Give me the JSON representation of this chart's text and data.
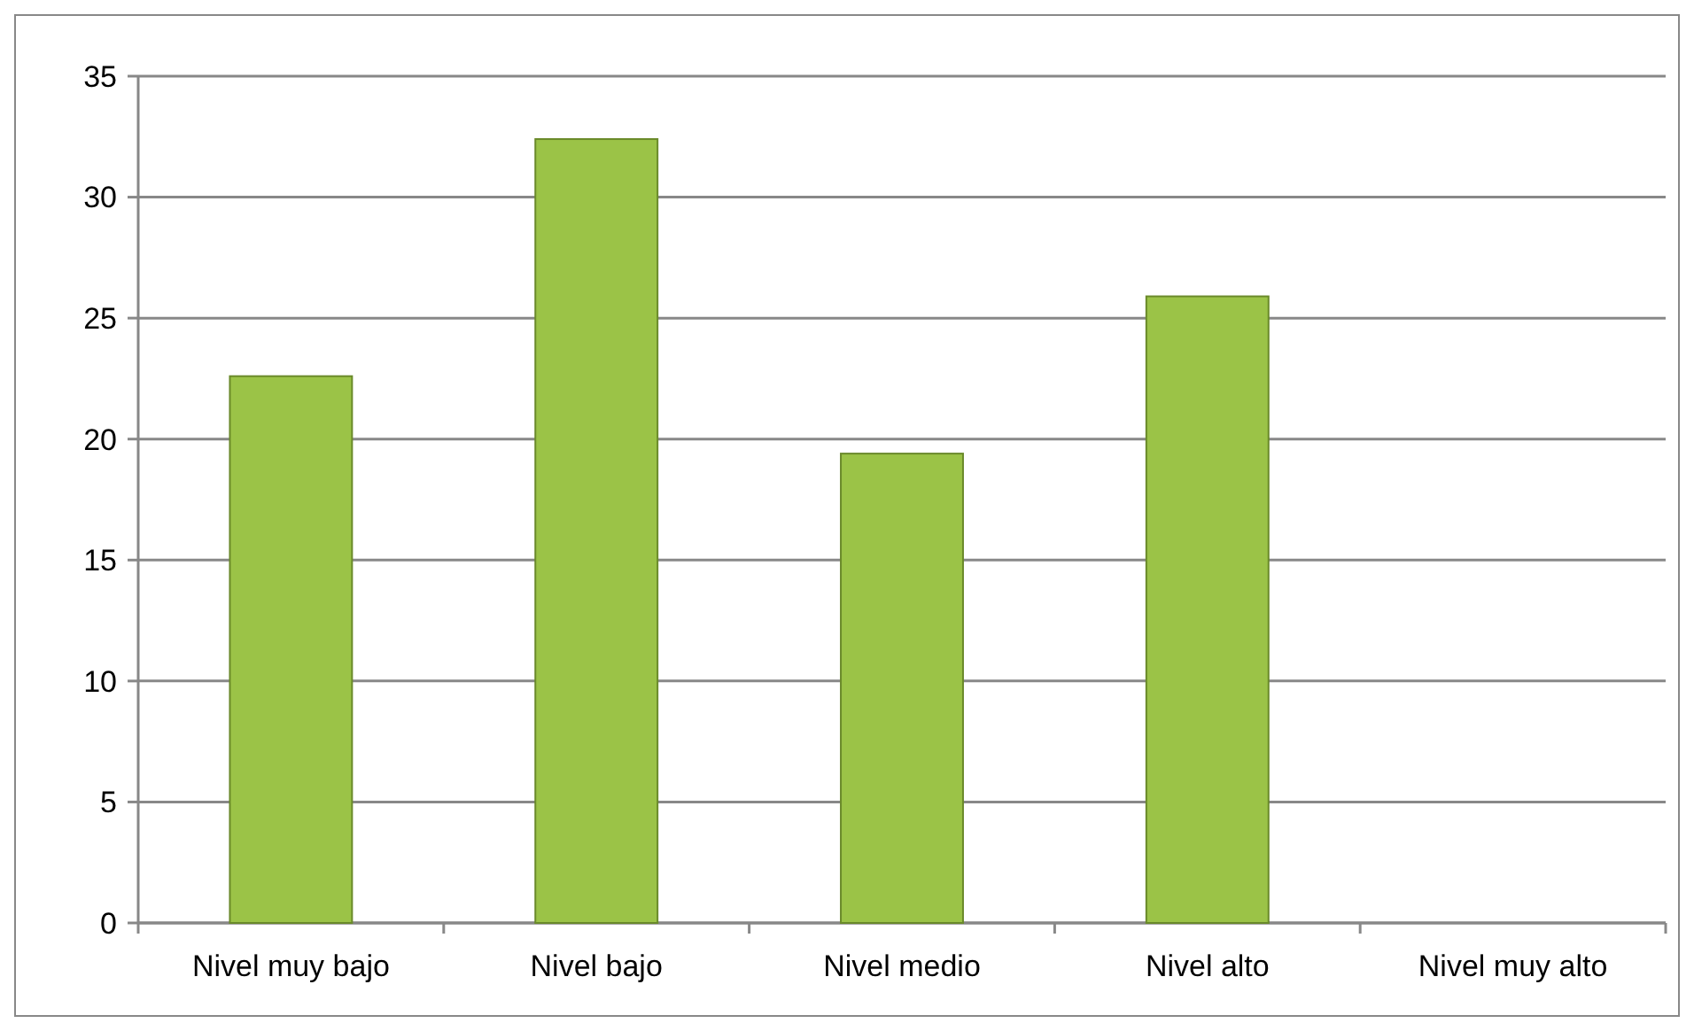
{
  "chart_data": {
    "type": "bar",
    "categories": [
      "Nivel muy bajo",
      "Nivel bajo",
      "Nivel medio",
      "Nivel alto",
      "Nivel muy alto"
    ],
    "values": [
      22.6,
      32.4,
      19.4,
      25.9,
      0
    ],
    "color": "#9bc347",
    "ylim": [
      0,
      35
    ],
    "yticks": [
      0,
      5,
      10,
      15,
      20,
      25,
      30,
      35
    ],
    "grid": "y"
  }
}
